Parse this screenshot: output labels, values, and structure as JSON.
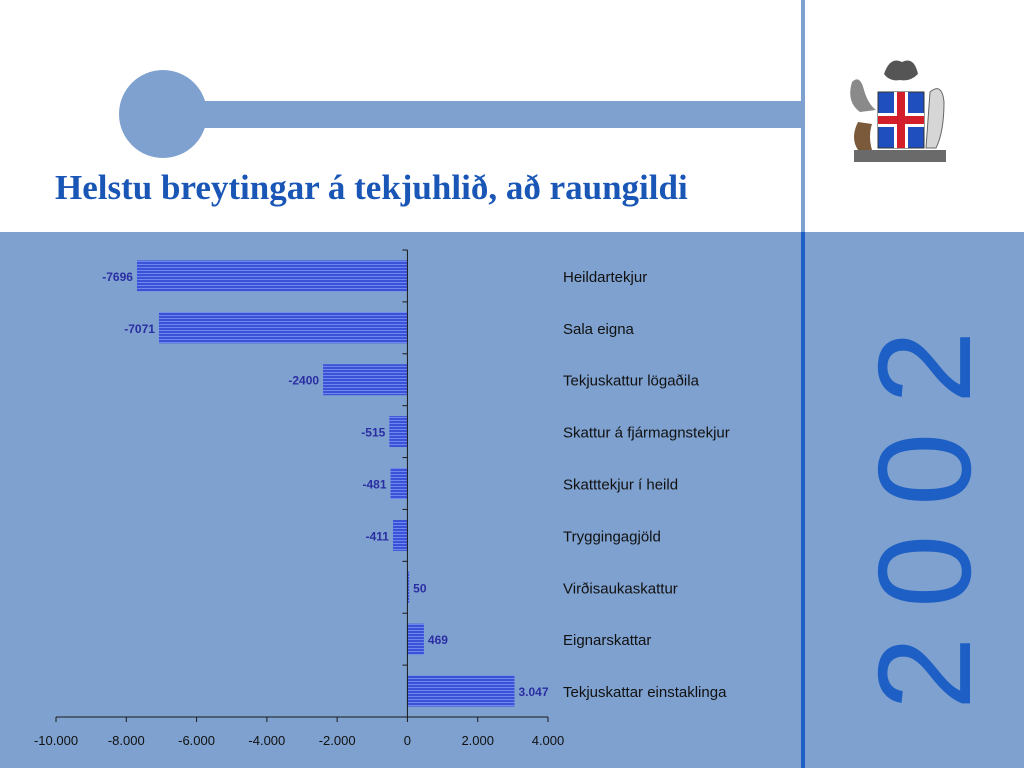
{
  "slide": {
    "title": "Helstu breytingar á tekjuhlið, að raungildi",
    "year_digits": [
      "2",
      "0",
      "0",
      "2"
    ],
    "colors": {
      "background_panel": "#7ea1cf",
      "title": "#1a56b6",
      "year": "#1d5fc4",
      "bar": "#3a52d6",
      "data_label": "#2b2ea3"
    },
    "icons": [
      "iceland-coat-of-arms-icon"
    ]
  },
  "chart_data": {
    "type": "bar",
    "orientation": "horizontal",
    "categories": [
      "Heildartekjur",
      "Sala eigna",
      "Tekjuskattur lögaðila",
      "Skattur á fjármagnstekjur",
      "Skatttekjur í heild",
      "Tryggingagjöld",
      "Virðisaukaskattur",
      "Eignarskattar",
      "Tekjuskattar einstaklinga"
    ],
    "values": [
      -7696,
      -7071,
      -2400,
      -515,
      -481,
      -411,
      50,
      469,
      3047
    ],
    "data_labels": [
      "-7696",
      "-7071",
      "-2400",
      "-515",
      "-481",
      "-411",
      "50",
      "469",
      "3.047"
    ],
    "xlim": [
      -10000,
      4000
    ],
    "x_ticks": [
      -10000,
      -8000,
      -6000,
      -4000,
      -2000,
      0,
      2000,
      4000
    ],
    "x_tick_labels": [
      "-10.000",
      "-8.000",
      "-6.000",
      "-4.000",
      "-2.000",
      "0",
      "2.000",
      "4.000"
    ],
    "grid": false,
    "legend": "none"
  }
}
